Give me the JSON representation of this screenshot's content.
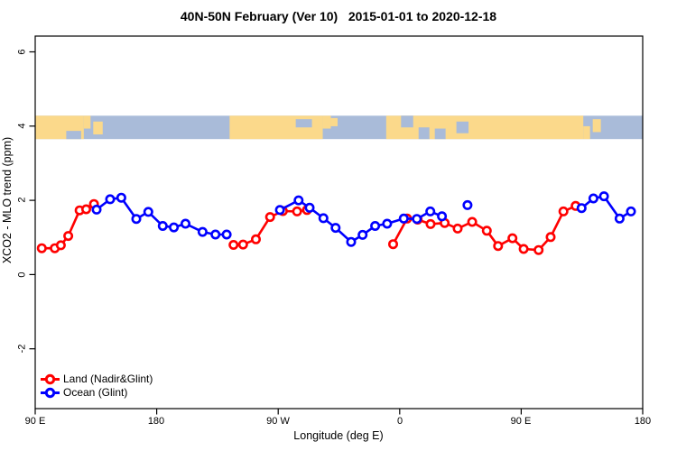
{
  "chart_data": {
    "type": "line",
    "title": "40N-50N February (Ver 10)   2015-01-01 to 2020-12-18",
    "xlabel": "Longitude (deg E)",
    "ylabel": "XCO2 - MLO trend (ppm)",
    "xlim": [
      90,
      540
    ],
    "ylim": [
      -3.2,
      6.5
    ],
    "grid": false,
    "legend_position": "bottom-left",
    "x_tick_longitudes": [
      90,
      180,
      270,
      360,
      450,
      540
    ],
    "x_tick_labels": [
      "90 E",
      "180",
      "90 W",
      "0",
      "90 E",
      "180"
    ],
    "y_tick_values": [
      6,
      4,
      2,
      0,
      -2
    ],
    "y_tick_labels": [
      "6",
      "4",
      "2",
      "0",
      "-2"
    ],
    "series": [
      {
        "name": "Land (Nadir&Glint)",
        "color": "#ff0000",
        "marker": "open-circle",
        "segments": [
          [
            [
              94.9,
              0.71
            ],
            [
              104.5,
              0.71
            ],
            [
              109,
              0.79
            ],
            [
              114.5,
              1.04
            ],
            [
              122.9,
              1.73
            ],
            [
              127.8,
              1.76
            ],
            [
              133.5,
              1.9
            ]
          ],
          [
            [
              236.9,
              0.8
            ],
            [
              244,
              0.81
            ],
            [
              253.5,
              0.95
            ],
            [
              264,
              1.55
            ],
            [
              273.5,
              1.71
            ],
            [
              284,
              1.7
            ],
            [
              291.3,
              1.74
            ]
          ],
          [
            [
              355.1,
              0.82
            ],
            [
              365.5,
              1.51
            ],
            [
              373.3,
              1.48
            ],
            [
              382.9,
              1.36
            ],
            [
              393.3,
              1.39
            ],
            [
              402.9,
              1.24
            ],
            [
              413.7,
              1.42
            ],
            [
              424.5,
              1.18
            ],
            [
              432.9,
              0.77
            ],
            [
              443.5,
              0.98
            ],
            [
              451.8,
              0.69
            ],
            [
              462.9,
              0.66
            ],
            [
              471.8,
              1.01
            ],
            [
              481.3,
              1.7
            ],
            [
              490.3,
              1.85
            ]
          ]
        ],
        "isolated_points": []
      },
      {
        "name": "Ocean (Glint)",
        "color": "#0000ff",
        "marker": "open-circle",
        "segments": [
          [
            [
              135.5,
              1.75
            ],
            [
              145.5,
              2.03
            ],
            [
              153.8,
              2.07
            ],
            [
              164.9,
              1.5
            ],
            [
              173.8,
              1.69
            ],
            [
              184.5,
              1.31
            ],
            [
              192.7,
              1.27
            ],
            [
              201.3,
              1.37
            ],
            [
              214,
              1.15
            ],
            [
              223.5,
              1.08
            ],
            [
              231.8,
              1.08
            ]
          ],
          [
            [
              271.3,
              1.74
            ],
            [
              285.1,
              2.0
            ],
            [
              293.3,
              1.8
            ],
            [
              303.5,
              1.52
            ],
            [
              312.5,
              1.26
            ],
            [
              324,
              0.88
            ],
            [
              332.5,
              1.07
            ],
            [
              341.8,
              1.31
            ],
            [
              350.7,
              1.37
            ],
            [
              363,
              1.51
            ],
            [
              372.7,
              1.5
            ],
            [
              382.7,
              1.7
            ],
            [
              391.3,
              1.57
            ]
          ],
          [
            [
              494.7,
              1.79
            ],
            [
              503.5,
              2.05
            ],
            [
              511.3,
              2.11
            ],
            [
              522.9,
              1.51
            ],
            [
              531.3,
              1.7
            ]
          ]
        ],
        "isolated_points": [
          [
            410.2,
            1.87
          ]
        ]
      }
    ],
    "map_band": {
      "description": "world-map latitude strip 40N-50N drawn across plot near y=4 ppm",
      "ppm_top": 4.28,
      "ppm_bottom": 3.65,
      "ocean_color": "#a9bbd9",
      "land_color": "#fbd98b",
      "land_segments": [
        {
          "from": 90,
          "to": 126,
          "top": 0,
          "bottom": 1
        },
        {
          "from": 126,
          "to": 131,
          "top": 0,
          "bottom": 0.55
        },
        {
          "from": 133,
          "to": 140,
          "top": 0.25,
          "bottom": 0.8
        },
        {
          "from": 234,
          "to": 303,
          "top": 0,
          "bottom": 1
        },
        {
          "from": 303,
          "to": 309,
          "top": 0,
          "bottom": 0.55
        },
        {
          "from": 309,
          "to": 314,
          "top": 0.1,
          "bottom": 0.45
        },
        {
          "from": 350,
          "to": 496,
          "top": 0,
          "bottom": 1
        },
        {
          "from": 496,
          "to": 501,
          "top": 0.45,
          "bottom": 1
        },
        {
          "from": 503,
          "to": 509,
          "top": 0.15,
          "bottom": 0.7
        }
      ],
      "ocean_notches": [
        {
          "from": 113,
          "to": 124,
          "top": 0.65,
          "bottom": 1
        },
        {
          "from": 283,
          "to": 295,
          "top": 0.15,
          "bottom": 0.5
        },
        {
          "from": 361,
          "to": 370,
          "top": 0,
          "bottom": 0.5
        },
        {
          "from": 374,
          "to": 382,
          "top": 0.5,
          "bottom": 1
        },
        {
          "from": 386,
          "to": 394,
          "top": 0.55,
          "bottom": 1
        },
        {
          "from": 402,
          "to": 411,
          "top": 0.25,
          "bottom": 0.75
        }
      ]
    },
    "legend": [
      {
        "label": "Land (Nadir&Glint)",
        "color": "#ff0000"
      },
      {
        "label": "Ocean (Glint)",
        "color": "#0000ff"
      }
    ]
  }
}
